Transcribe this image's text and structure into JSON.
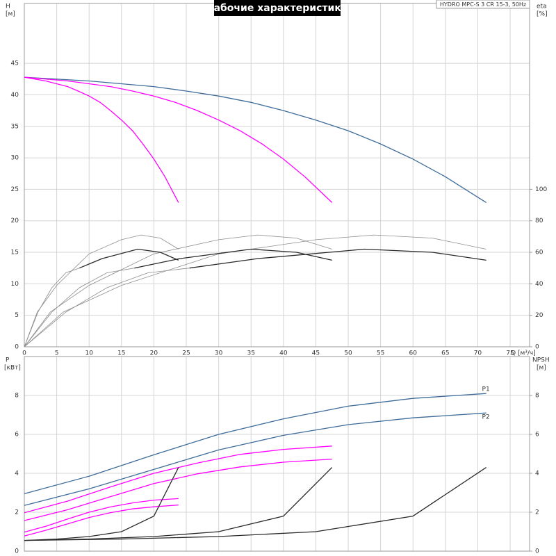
{
  "chart_data": [
    {
      "type": "line",
      "title": "Рабочие характеристики",
      "annotation": "HYDRO MPC-S 3 CR 15-3, 50Hz",
      "y_label": "H",
      "y_unit": "[м]",
      "y2_label": "eta",
      "y2_unit": "[%]",
      "x_label": "Q [м³/ч]",
      "xlim": [
        0,
        78
      ],
      "xticks": [
        0,
        5,
        10,
        15,
        20,
        25,
        30,
        35,
        40,
        45,
        50,
        55,
        60,
        65,
        70,
        75
      ],
      "ylim": [
        0,
        54.5
      ],
      "yticks": [
        0,
        5,
        10,
        15,
        20,
        25,
        30,
        35,
        40,
        45
      ],
      "y2lim": [
        0,
        218
      ],
      "y2ticks": [
        0,
        20,
        40,
        60,
        80,
        100
      ],
      "grid": true,
      "series": [
        {
          "color": "#3d6b9a",
          "x": [
            0,
            10,
            20,
            25,
            30,
            35,
            40,
            45,
            50,
            55,
            60,
            65,
            71.3
          ],
          "values": [
            42.8,
            42.2,
            41.3,
            40.6,
            39.8,
            38.8,
            37.5,
            36,
            34.3,
            32.2,
            29.8,
            27,
            22.9
          ]
        },
        {
          "color": "#ff00ff",
          "x": [
            0,
            6.7,
            13.3,
            16.7,
            20,
            23.3,
            26.7,
            30,
            33.3,
            36.7,
            40,
            43.3,
            47.5
          ],
          "values": [
            42.8,
            42.2,
            41.3,
            40.6,
            39.8,
            38.8,
            37.5,
            36,
            34.3,
            32.2,
            29.8,
            27,
            22.9
          ]
        },
        {
          "color": "#ff00ff",
          "x": [
            0,
            3.3,
            6.7,
            8.3,
            10,
            11.7,
            13.3,
            15,
            16.7,
            18.3,
            20,
            21.7,
            23.8
          ],
          "values": [
            42.8,
            42.2,
            41.3,
            40.6,
            39.8,
            38.8,
            37.5,
            36,
            34.3,
            32.2,
            29.8,
            27,
            22.9
          ]
        },
        {
          "color": "#8c8c8c",
          "axis": "y2",
          "x": [
            0,
            2,
            5,
            10,
            15,
            18,
            21,
            23.8
          ],
          "values": [
            0,
            22,
            39,
            59,
            68,
            71,
            69,
            62
          ]
        },
        {
          "color": "#8c8c8c",
          "axis": "y2",
          "x": [
            0,
            4,
            10,
            20,
            30,
            36,
            42,
            47.5
          ],
          "values": [
            0,
            22,
            39,
            59,
            68,
            71,
            69,
            62
          ]
        },
        {
          "color": "#8c8c8c",
          "axis": "y2",
          "x": [
            0,
            6,
            15,
            30,
            45,
            54,
            63,
            71.3
          ],
          "values": [
            0,
            22,
            39,
            59,
            68,
            71,
            69,
            62
          ]
        },
        {
          "color": "#8c8c8c",
          "axis": "y2",
          "x": [
            0,
            2.1,
            4.25,
            6.4,
            8.5
          ],
          "values": [
            0,
            22,
            37.5,
            47,
            50
          ]
        },
        {
          "color": "#8c8c8c",
          "axis": "y2",
          "x": [
            0,
            4.25,
            8.5,
            12.75,
            17
          ],
          "values": [
            0,
            22,
            37.5,
            47,
            50
          ]
        },
        {
          "color": "#8c8c8c",
          "axis": "y2",
          "x": [
            0,
            6.4,
            12.75,
            19.1,
            25.5
          ],
          "values": [
            0,
            22,
            37.5,
            47,
            50
          ]
        },
        {
          "color": "#2a2a2a",
          "axis": "y2",
          "x": [
            8.5,
            12,
            17.5,
            21,
            23.8
          ],
          "values": [
            50,
            56,
            62,
            60,
            55
          ]
        },
        {
          "color": "#2a2a2a",
          "axis": "y2",
          "x": [
            17,
            24,
            35,
            42,
            47.5
          ],
          "values": [
            50,
            56,
            62,
            60,
            55
          ]
        },
        {
          "color": "#2a2a2a",
          "axis": "y2",
          "x": [
            25.5,
            36,
            52.5,
            63,
            71.3
          ],
          "values": [
            50,
            56,
            62,
            60,
            55
          ]
        }
      ]
    },
    {
      "type": "line",
      "y_label": "P",
      "y_unit": "[кВт]",
      "y2_label": "NPSH",
      "y2_unit": "[м]",
      "xlim": [
        0,
        78
      ],
      "ylim": [
        0,
        10
      ],
      "yticks": [
        0,
        2,
        4,
        6,
        8
      ],
      "y2lim": [
        0,
        10
      ],
      "y2ticks": [
        0,
        2,
        4,
        6,
        8
      ],
      "grid": true,
      "series": [
        {
          "name": "P1",
          "color": "#3d6b9a",
          "x": [
            0,
            10,
            20,
            30,
            40,
            50,
            60,
            71.3
          ],
          "values": [
            2.95,
            3.85,
            4.95,
            6,
            6.8,
            7.45,
            7.85,
            8.1
          ]
        },
        {
          "name": "P2",
          "color": "#3d6b9a",
          "x": [
            0,
            10,
            20,
            30,
            40,
            50,
            60,
            71.3
          ],
          "values": [
            2.35,
            3.2,
            4.2,
            5.2,
            5.95,
            6.5,
            6.85,
            7.1
          ]
        },
        {
          "color": "#ff00ff",
          "x": [
            0,
            6.7,
            13.3,
            20,
            26.7,
            33.3,
            40,
            47.5
          ],
          "values": [
            1.97,
            2.57,
            3.3,
            4,
            4.53,
            4.97,
            5.23,
            5.4
          ]
        },
        {
          "color": "#ff00ff",
          "x": [
            0,
            6.7,
            13.3,
            20,
            26.7,
            33.3,
            40,
            47.5
          ],
          "values": [
            1.57,
            2.13,
            2.8,
            3.47,
            3.97,
            4.33,
            4.57,
            4.73
          ]
        },
        {
          "color": "#ff00ff",
          "x": [
            0,
            3.3,
            6.7,
            10,
            13.3,
            16.7,
            20,
            23.8
          ],
          "values": [
            0.98,
            1.28,
            1.65,
            2,
            2.27,
            2.48,
            2.62,
            2.7
          ]
        },
        {
          "color": "#ff00ff",
          "x": [
            0,
            3.3,
            6.7,
            10,
            13.3,
            16.7,
            20,
            23.8
          ],
          "values": [
            0.78,
            1.07,
            1.4,
            1.73,
            1.98,
            2.17,
            2.28,
            2.37
          ]
        },
        {
          "color": "#2a2a2a",
          "axis": "y2",
          "x": [
            0,
            5,
            10,
            15,
            20,
            23.8
          ],
          "values": [
            0.55,
            0.62,
            0.75,
            1.0,
            1.8,
            4.3
          ]
        },
        {
          "color": "#2a2a2a",
          "axis": "y2",
          "x": [
            0,
            10,
            20,
            30,
            40,
            47.5
          ],
          "values": [
            0.55,
            0.62,
            0.75,
            1.0,
            1.8,
            4.3
          ]
        },
        {
          "color": "#2a2a2a",
          "axis": "y2",
          "x": [
            0,
            15,
            30,
            45,
            60,
            71.3
          ],
          "values": [
            0.55,
            0.62,
            0.75,
            1.0,
            1.8,
            4.3
          ]
        }
      ]
    }
  ]
}
